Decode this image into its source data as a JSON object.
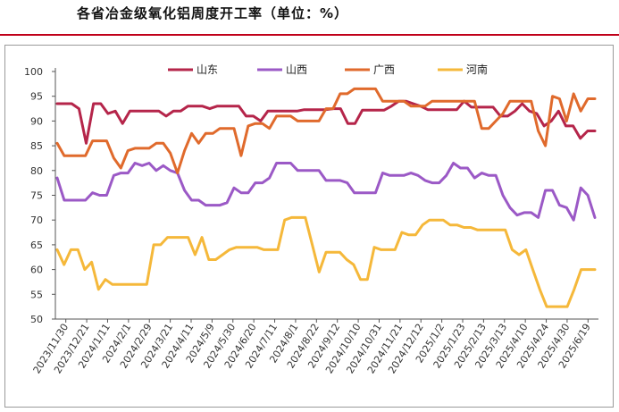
{
  "header": {
    "title": "各省冶金级氧化铝周度开工率（单位：%）"
  },
  "chart_data": {
    "type": "line",
    "title": "各省冶金级氧化铝周度开工率（单位：%）",
    "ylim": [
      50,
      100
    ],
    "yticks": [
      50,
      55,
      60,
      65,
      70,
      75,
      80,
      85,
      90,
      95,
      100
    ],
    "grid": false,
    "legend_position": "top",
    "xtick_labels": [
      "2023/11/30",
      "2023/12/21",
      "2024/1/11",
      "2024/2/1",
      "2024/2/29",
      "2024/3/21",
      "2024/4/11",
      "2024/5/9",
      "2024/5/30",
      "2024/6/20",
      "2024/7/11",
      "2024/8/1",
      "2024/8/22",
      "2024/9/12",
      "2024/10/10",
      "2024/10/31",
      "2024/11/21",
      "2024/12/12",
      "2025/1/2",
      "2025/1/23",
      "2025/2/13",
      "2025/3/13",
      "2025/4/10",
      "2025/4/24",
      "2025/4/30",
      "2025/6/19"
    ],
    "series": [
      {
        "name": "山东",
        "color": "#b5254a",
        "values": [
          93.5,
          93.5,
          93.5,
          92.5,
          85.5,
          93.5,
          93.5,
          91.5,
          92,
          89.5,
          92,
          92,
          92,
          92,
          92,
          91,
          92,
          92,
          93,
          93,
          93,
          92.5,
          93,
          93,
          93,
          93,
          91,
          91,
          90,
          92,
          92,
          92,
          92,
          92,
          92.3,
          92.3,
          92.3,
          92.3,
          92.5,
          92.5,
          89.5,
          89.5,
          92.2,
          92.2,
          92.2,
          92.2,
          93,
          94,
          94,
          93.5,
          93,
          92.3,
          92.3,
          92.3,
          92.3,
          92.3,
          94,
          92.8,
          92.8,
          92.8,
          92.8,
          91,
          91,
          92,
          93.5,
          92,
          91.5,
          89,
          90,
          92,
          89,
          89,
          86.5,
          88,
          88
        ]
      },
      {
        "name": "山西",
        "color": "#9b59c6",
        "values": [
          78.5,
          74,
          74,
          74,
          74,
          75.5,
          75,
          75,
          79,
          79.5,
          79.5,
          81.5,
          81,
          81.5,
          80,
          81,
          80,
          79.5,
          76,
          74,
          74,
          73,
          73,
          73,
          73.5,
          76.5,
          75.5,
          75.5,
          77.5,
          77.5,
          78.5,
          81.5,
          81.5,
          81.5,
          80,
          80,
          80,
          80,
          78,
          78,
          78,
          77.5,
          75.5,
          75.5,
          75.5,
          75.5,
          79.5,
          79,
          79,
          79,
          79.5,
          79,
          78,
          77.5,
          77.5,
          79,
          81.5,
          80.5,
          80.5,
          78.5,
          79.5,
          79,
          79,
          75,
          72.5,
          71,
          71.5,
          71.5,
          70.5,
          76,
          76,
          73,
          72.5,
          70,
          76.5,
          75,
          70.5
        ]
      },
      {
        "name": "广西",
        "color": "#e06a2c",
        "values": [
          85.5,
          83,
          83,
          83,
          83,
          86,
          86,
          86,
          82.5,
          80.5,
          84,
          84.5,
          84.5,
          84.5,
          85.5,
          85.5,
          83.5,
          79.5,
          84,
          87.5,
          85.5,
          87.5,
          87.5,
          88.5,
          88.5,
          88.5,
          83,
          89,
          89.5,
          89.5,
          88.5,
          91,
          91,
          91,
          90,
          90,
          90,
          90,
          92.5,
          92.5,
          95.5,
          95.5,
          96.5,
          96.5,
          96.5,
          96.5,
          94,
          94,
          94,
          94,
          93,
          93,
          93,
          94,
          94,
          94,
          94,
          94,
          94,
          94,
          88.5,
          88.5,
          90,
          91.5,
          94,
          94,
          94,
          94,
          88,
          85,
          95,
          94.5,
          90,
          95.5,
          92,
          94.5,
          94.5
        ]
      },
      {
        "name": "河南",
        "color": "#f5b83a",
        "values": [
          64,
          61,
          64,
          64,
          60,
          61.5,
          56,
          58,
          57,
          57,
          57,
          57,
          57,
          57,
          65,
          65,
          66.5,
          66.5,
          66.5,
          66.5,
          63,
          66.5,
          62,
          62,
          63,
          64,
          64.5,
          64.5,
          64.5,
          64.5,
          64,
          64,
          64,
          70,
          70.5,
          70.5,
          70.5,
          65,
          59.5,
          63.5,
          63.5,
          63.5,
          62,
          61,
          58,
          58,
          64.5,
          64,
          64,
          64,
          67.5,
          67,
          67,
          69,
          70,
          70,
          70,
          69,
          69,
          68.5,
          68.5,
          68,
          68,
          68,
          68,
          68,
          64,
          63,
          64,
          60,
          56,
          52.5,
          52.5,
          52.5,
          52.5,
          56,
          60,
          60,
          60
        ]
      }
    ]
  }
}
